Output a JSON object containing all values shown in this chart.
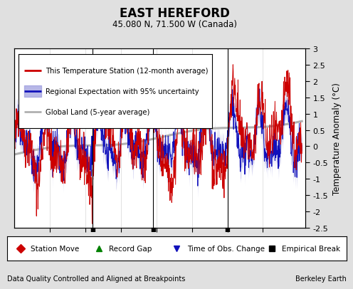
{
  "title": "EAST HEREFORD",
  "subtitle": "45.080 N, 71.500 W (Canada)",
  "ylabel": "Temperature Anomaly (°C)",
  "xlabel_left": "Data Quality Controlled and Aligned at Breakpoints",
  "xlabel_right": "Berkeley Earth",
  "ylim": [
    -2.5,
    3.0
  ],
  "xlim": [
    1930,
    2012
  ],
  "yticks": [
    -2.5,
    -2,
    -1.5,
    -1,
    -0.5,
    0,
    0.5,
    1,
    1.5,
    2,
    2.5,
    3
  ],
  "xticks": [
    1940,
    1950,
    1960,
    1970,
    1980,
    1990,
    2000
  ],
  "empirical_break_years": [
    1952,
    1969,
    1990
  ],
  "bg_color": "#e0e0e0",
  "plot_bg_color": "#ffffff",
  "red_color": "#cc0000",
  "blue_color": "#1111bb",
  "blue_fill_color": "#9999dd",
  "gray_color": "#b0b0b0",
  "legend_items": [
    "This Temperature Station (12-month average)",
    "Regional Expectation with 95% uncertainty",
    "Global Land (5-year average)"
  ],
  "seed": 42
}
